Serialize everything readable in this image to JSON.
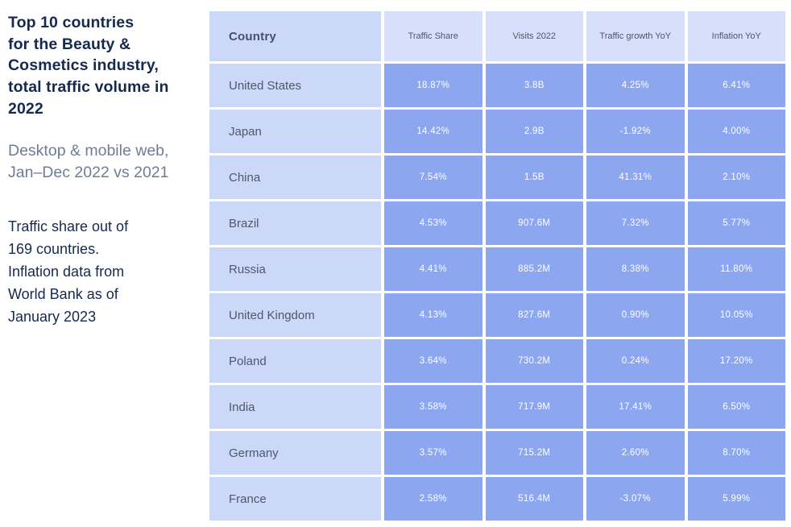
{
  "colors": {
    "background": "#ffffff",
    "title_text": "#16294e",
    "subtitle_text": "#6e7c99",
    "note_text": "#16294e",
    "country_column_bg": "#ccd8f8",
    "data_header_bg": "#d7e0fa",
    "data_cell_bg": "#8ca7f0",
    "data_cell_text": "#ffffff",
    "table_label_text": "#4e586d",
    "grid_gap": "#ffffff"
  },
  "left_panel": {
    "title": "Top 10 countries\nfor the Beauty &\nCosmetics industry,\ntotal traffic volume in\n2022",
    "subtitle": "Desktop & mobile web,\nJan–Dec 2022 vs 2021",
    "note": "Traffic share out of\n169 countries.\nInflation data from\nWorld Bank as of\nJanuary 2023"
  },
  "chart_data": {
    "type": "table",
    "title": "Top 10 countries for the Beauty & Cosmetics industry, total traffic volume in 2022",
    "subtitle": "Desktop & mobile web, Jan–Dec 2022 vs 2021",
    "footnote": "Traffic share out of 169 countries. Inflation data from World Bank as of January 2023",
    "columns": [
      "Country",
      "Traffic Share",
      "Visits 2022",
      "Traffic growth YoY",
      "Inflation YoY"
    ],
    "rows": [
      [
        "United States",
        "18.87%",
        "3.8B",
        "4.25%",
        "6.41%"
      ],
      [
        "Japan",
        "14.42%",
        "2.9B",
        "-1.92%",
        "4.00%"
      ],
      [
        "China",
        "7.54%",
        "1.5B",
        "41.31%",
        "2.10%"
      ],
      [
        "Brazil",
        "4.53%",
        "907.6M",
        "7.32%",
        "5.77%"
      ],
      [
        "Russia",
        "4.41%",
        "885.2M",
        "8.38%",
        "11.80%"
      ],
      [
        "United Kingdom",
        "4.13%",
        "827.6M",
        "0.90%",
        "10.05%"
      ],
      [
        "Poland",
        "3.64%",
        "730.2M",
        "0.24%",
        "17.20%"
      ],
      [
        "India",
        "3.58%",
        "717.9M",
        "17.41%",
        "6.50%"
      ],
      [
        "Germany",
        "3.57%",
        "715.2M",
        "2.60%",
        "8.70%"
      ],
      [
        "France",
        "2.58%",
        "516.4M",
        "-3.07%",
        "5.99%"
      ]
    ]
  }
}
